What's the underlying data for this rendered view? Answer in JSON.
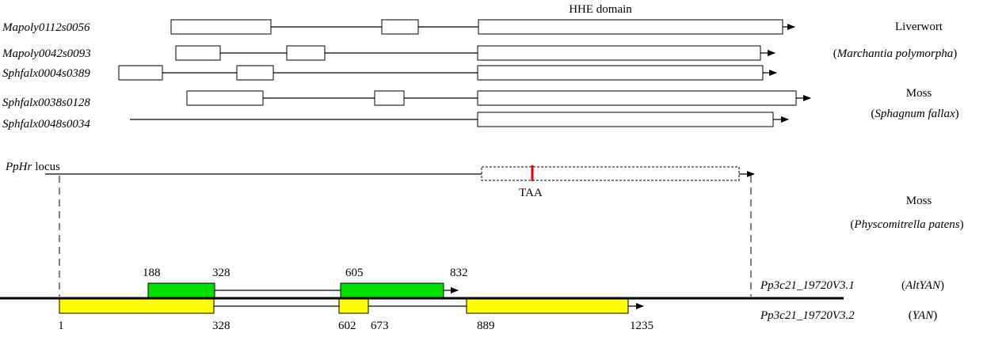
{
  "domain_label": "HHE domain",
  "genes": [
    "Mapoly0112s0056",
    "Mapoly0042s0093",
    "Sphfalx0004s0389",
    "Sphfalx0038s0128",
    "Sphfalx0048s0034"
  ],
  "groups": [
    {
      "name": "Liverwort",
      "species": {
        "open": "(",
        "name": "Marchantia polymorpha",
        "close": ")"
      }
    },
    {
      "name": "Moss",
      "species": {
        "open": "(",
        "name": "Sphagnum fallax",
        "close": ")"
      }
    },
    {
      "name": "Moss",
      "species": {
        "open": "(",
        "name": "Physcomitrella patens",
        "close": ")"
      }
    }
  ],
  "locus": {
    "name": "PpHr",
    "suffix": "locus",
    "stop_codon": "TAA"
  },
  "transcripts": [
    {
      "id": "Pp3c21_19720V3.1",
      "alias": {
        "open": "(",
        "name": "AltYAN",
        "close": ")"
      },
      "exon_coords": [
        "188",
        "328",
        "605",
        "832"
      ]
    },
    {
      "id": "Pp3c21_19720V3.2",
      "alias": {
        "open": "(",
        "name": "YAN",
        "close": ")"
      },
      "exon_coords": [
        "1",
        "328",
        "602",
        "673",
        "889",
        "1235"
      ]
    }
  ]
}
